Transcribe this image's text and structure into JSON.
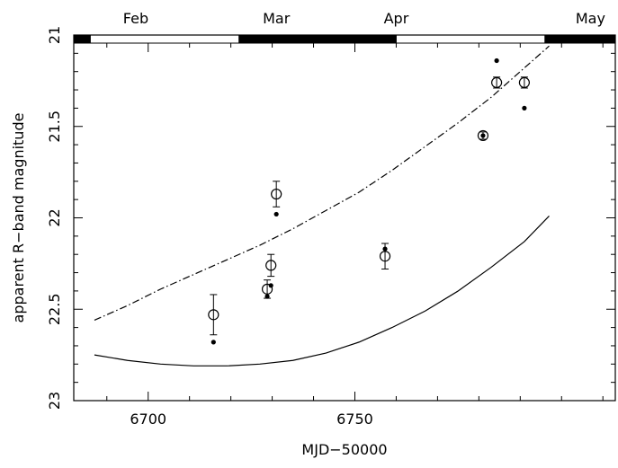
{
  "chart_data": {
    "type": "scatter",
    "xlabel": "MJD−50000",
    "ylabel": "apparent R−band magnitude",
    "xlim": [
      6682,
      6813
    ],
    "ylim": [
      23,
      21
    ],
    "y_inverted": true,
    "x_ticks": [
      6700,
      6750
    ],
    "x_tick_labels": [
      "6700",
      "6750"
    ],
    "y_ticks": [
      21,
      21.5,
      22,
      22.5,
      23
    ],
    "y_tick_labels": [
      "21",
      "21.5",
      "22",
      "22.5",
      "23"
    ],
    "grid": false,
    "month_labels": [
      {
        "label": "Feb",
        "x": 6697
      },
      {
        "label": "Mar",
        "x": 6731
      },
      {
        "label": "Apr",
        "x": 6760
      },
      {
        "label": "May",
        "x": 6807
      }
    ],
    "month_bar": [
      {
        "from": 6682,
        "to": 6686,
        "fill": "black"
      },
      {
        "from": 6686,
        "to": 6722,
        "fill": "white"
      },
      {
        "from": 6722,
        "to": 6760,
        "fill": "black"
      },
      {
        "from": 6760,
        "to": 6796,
        "fill": "white"
      },
      {
        "from": 6796,
        "to": 6813,
        "fill": "black"
      }
    ],
    "series": [
      {
        "marker": "open-circle",
        "points": [
          {
            "x": 6715.8,
            "y": 22.53,
            "yerr": 0.11
          },
          {
            "x": 6728.8,
            "y": 22.39,
            "yerr": 0.05
          },
          {
            "x": 6729.7,
            "y": 22.26,
            "yerr": 0.06
          },
          {
            "x": 6731.0,
            "y": 21.87,
            "yerr": 0.07
          },
          {
            "x": 6757.3,
            "y": 22.21,
            "yerr": 0.07
          },
          {
            "x": 6781.0,
            "y": 21.55,
            "yerr": 0.02
          },
          {
            "x": 6784.3,
            "y": 21.26,
            "yerr": 0.03
          },
          {
            "x": 6791.0,
            "y": 21.26,
            "yerr": 0.03
          }
        ]
      },
      {
        "marker": "filled-dot",
        "points": [
          {
            "x": 6715.8,
            "y": 22.68
          },
          {
            "x": 6728.8,
            "y": 22.43
          },
          {
            "x": 6729.7,
            "y": 22.37
          },
          {
            "x": 6731.0,
            "y": 21.98
          },
          {
            "x": 6757.3,
            "y": 22.17
          },
          {
            "x": 6781.0,
            "y": 21.55
          },
          {
            "x": 6784.3,
            "y": 21.14
          },
          {
            "x": 6791.0,
            "y": 21.4
          }
        ]
      }
    ],
    "curves": [
      {
        "style": "solid",
        "points": [
          [
            6687,
            22.75
          ],
          [
            6695,
            22.78
          ],
          [
            6703,
            22.8
          ],
          [
            6711,
            22.81
          ],
          [
            6719,
            22.81
          ],
          [
            6727,
            22.8
          ],
          [
            6735,
            22.78
          ],
          [
            6743,
            22.74
          ],
          [
            6751,
            22.68
          ],
          [
            6759,
            22.6
          ],
          [
            6767,
            22.51
          ],
          [
            6775,
            22.4
          ],
          [
            6783,
            22.27
          ],
          [
            6791,
            22.13
          ],
          [
            6797,
            21.99
          ]
        ]
      },
      {
        "style": "dash-dot",
        "points": [
          [
            6687,
            22.56
          ],
          [
            6695,
            22.48
          ],
          [
            6703,
            22.39
          ],
          [
            6711,
            22.31
          ],
          [
            6719,
            22.23
          ],
          [
            6727,
            22.15
          ],
          [
            6735,
            22.06
          ],
          [
            6743,
            21.96
          ],
          [
            6751,
            21.86
          ],
          [
            6759,
            21.74
          ],
          [
            6767,
            21.61
          ],
          [
            6775,
            21.48
          ],
          [
            6783,
            21.34
          ],
          [
            6791,
            21.18
          ],
          [
            6797,
            21.06
          ]
        ]
      }
    ]
  }
}
